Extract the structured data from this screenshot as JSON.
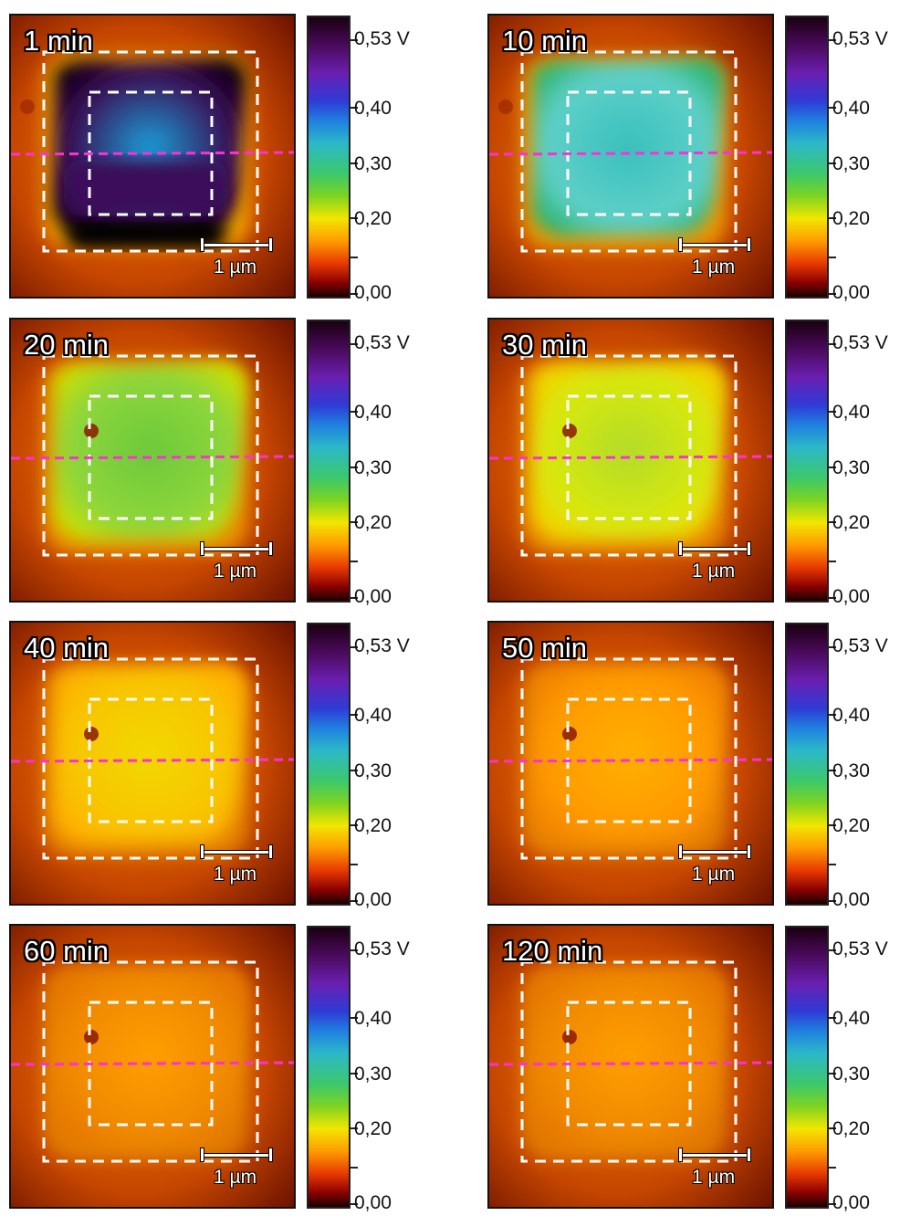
{
  "panels": [
    {
      "time": "1 min"
    },
    {
      "time": "10 min"
    },
    {
      "time": "20 min"
    },
    {
      "time": "30 min"
    },
    {
      "time": "40 min"
    },
    {
      "time": "50 min"
    },
    {
      "time": "60 min"
    },
    {
      "time": "120 min"
    }
  ],
  "scale_bar_label": "1 µm",
  "colorbar_ticks": [
    "0,53 V",
    "0,40",
    "0,30",
    "0,20",
    "0,00"
  ],
  "colors": {
    "dashed_square": "#ffffff",
    "profile_line": "#ff2fd6",
    "background": "#b83500"
  }
}
